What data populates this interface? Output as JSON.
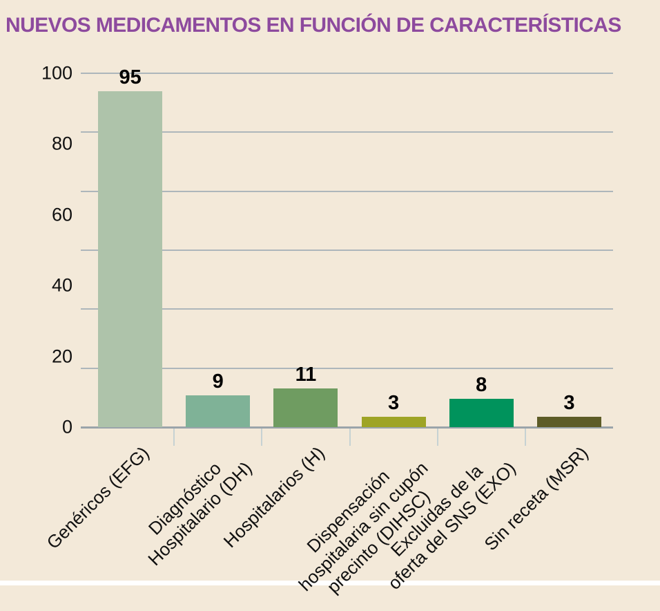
{
  "title": {
    "text": "NUEVOS MEDICAMENTOS EN FUNCIÓN DE CARACTERÍSTICAS"
  },
  "colors": {
    "background": "#f3e9d9",
    "title": "#8d4a9e",
    "gridline": "#adb6bb",
    "axis_line": "#9aa4aa",
    "x_tick": "#c6d2d3",
    "tick_text": "#111111",
    "value_label_text": "#000000"
  },
  "chart_data": {
    "type": "bar",
    "title": "NUEVOS MEDICAMENTOS EN FUNCIÓN DE CARACTERÍSTICAS",
    "categories": [
      "Genéricos (EFG)",
      "Diagnóstico Hospitalario (DH)",
      "Hospitalarios (H)",
      "Dispensación hospitalaria sin cupón precinto (DIHSC)",
      "Excluidas de la oferta del SNS (EXO)",
      "Sin receta (MSR)"
    ],
    "category_label_lines": [
      [
        "Genéricos (EFG)"
      ],
      [
        "Diagnóstico",
        "Hospitalario (DH)"
      ],
      [
        "Hospitalarios (H)"
      ],
      [
        "Dispensación",
        "hospitalaria sin cupón",
        "precinto (DIHSC)"
      ],
      [
        "Excluidas de la",
        "oferta del SNS (EXO)"
      ],
      [
        "Sin receta (MSR)"
      ]
    ],
    "values": [
      95,
      9,
      11,
      3,
      8,
      3
    ],
    "value_labels": [
      "95",
      "9",
      "11",
      "3",
      "8",
      "3"
    ],
    "bar_colors": [
      "#aec3aa",
      "#7fb297",
      "#6f9c61",
      "#9ea426",
      "#00935c",
      "#5d5c27"
    ],
    "xlabel": "",
    "ylabel": "",
    "ylim": [
      0,
      100
    ],
    "y_ticks": [
      0,
      20,
      40,
      60,
      80,
      100
    ],
    "gridline_divisions": 6,
    "grid": "horizontal",
    "legend": "none",
    "x_tick_label_rotation_deg": 45
  }
}
